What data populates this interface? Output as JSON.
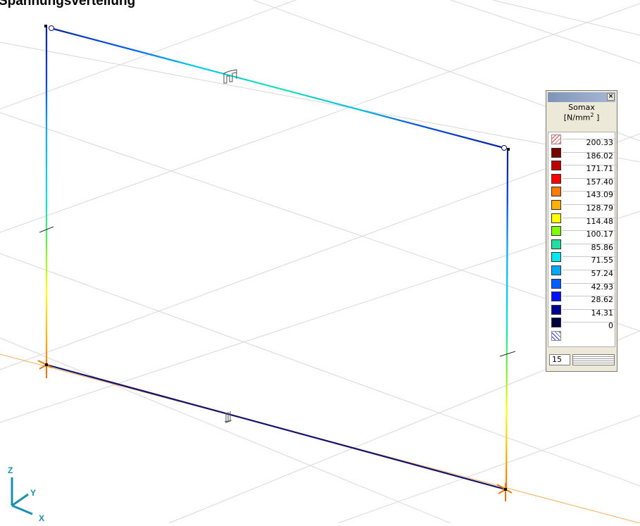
{
  "title": "Spannungsverteilung",
  "axes": {
    "z": "Z",
    "y": "Y",
    "x": "X"
  },
  "legend": {
    "heading": "Somax",
    "unit_prefix": "[N/mm",
    "unit_sup": "2",
    "unit_suffix": " ]",
    "close_label": "×",
    "levels": [
      {
        "value": "200.33",
        "color": "hatch-red"
      },
      {
        "value": "186.02",
        "color": "#7a0000"
      },
      {
        "value": "171.71",
        "color": "#c00000"
      },
      {
        "value": "157.40",
        "color": "#ff0000"
      },
      {
        "value": "143.09",
        "color": "#ff7a00"
      },
      {
        "value": "128.79",
        "color": "#ffb000"
      },
      {
        "value": "114.48",
        "color": "#ffff00"
      },
      {
        "value": "100.17",
        "color": "#80ff00"
      },
      {
        "value": "85.86",
        "color": "#20e0a0"
      },
      {
        "value": "71.55",
        "color": "#00e8f0"
      },
      {
        "value": "57.24",
        "color": "#00a8ff"
      },
      {
        "value": "42.93",
        "color": "#0060ff"
      },
      {
        "value": "28.62",
        "color": "#0010ff"
      },
      {
        "value": "14.31",
        "color": "#000090"
      },
      {
        "value": "0",
        "color": "#000040"
      }
    ],
    "end_color": "hatch-blue",
    "count": "15"
  },
  "colors": {
    "grid": "#d6d6d6",
    "axis_orange": "#f0a040",
    "axis_label": "#1a8fb0",
    "member_dark": "#10106a"
  }
}
